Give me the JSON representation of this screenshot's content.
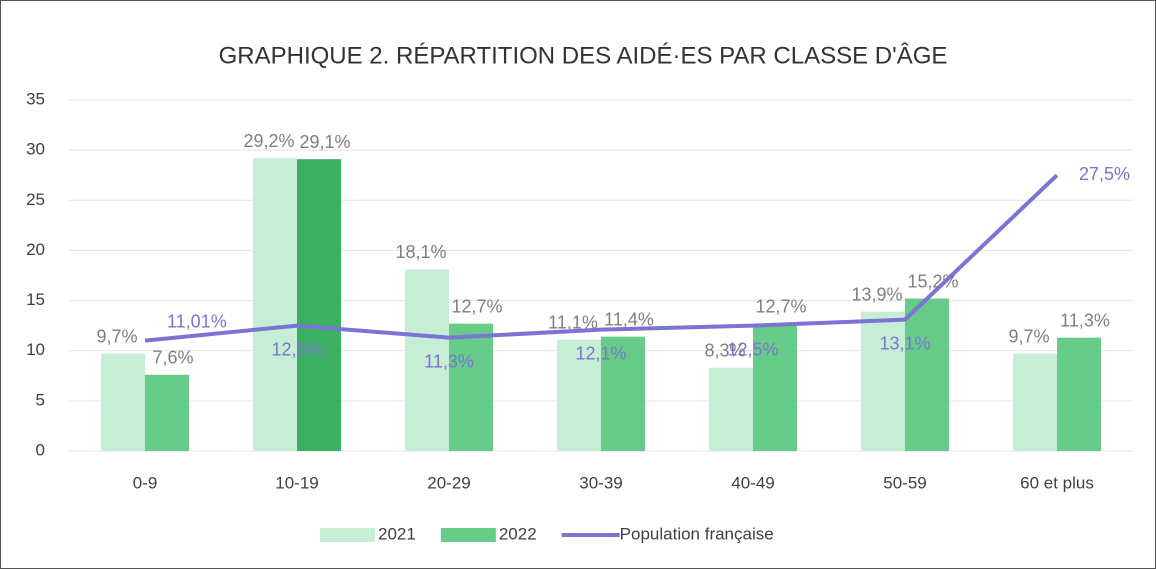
{
  "chart_data": {
    "type": "bar",
    "title": "GRAPHIQUE 2. RÉPARTITION DES AIDÉ·ES PAR CLASSE D'ÂGE",
    "categories": [
      "0-9",
      "10-19",
      "20-29",
      "30-39",
      "40-49",
      "50-59",
      "60 et plus"
    ],
    "series": [
      {
        "name": "2021",
        "type": "bar",
        "color": "#c5eed5",
        "values": [
          9.7,
          29.2,
          18.1,
          11.1,
          8.3,
          13.9,
          9.7
        ],
        "value_labels": [
          "9,7%",
          "29,2%",
          "18,1%",
          "11,1%",
          "8,3%",
          "13,9%",
          "9,7%"
        ]
      },
      {
        "name": "2022",
        "type": "bar",
        "color": "#66cc88",
        "colors": [
          "#66cc88",
          "#3daf63",
          "#66cc88",
          "#66cc88",
          "#66cc88",
          "#66cc88",
          "#66cc88"
        ],
        "values": [
          7.6,
          29.1,
          12.7,
          11.4,
          12.7,
          15.2,
          11.3
        ],
        "value_labels": [
          "7,6%",
          "29,1%",
          "12,7%",
          "11,4%",
          "12,7%",
          "15,2%",
          "11,3%"
        ]
      },
      {
        "name": "Population française",
        "type": "line",
        "color": "#7b74d4",
        "values": [
          11.01,
          12.5,
          11.3,
          12.1,
          12.5,
          13.1,
          27.5
        ],
        "value_labels": [
          "11,01%",
          "12,5%",
          "11,3%",
          "12,1%",
          "12,5%",
          "13,1%",
          "27,5%"
        ]
      }
    ],
    "ylim": [
      0,
      35
    ],
    "yticks": [
      0,
      5,
      10,
      15,
      20,
      25,
      30,
      35
    ],
    "grid": true,
    "legend": "bottom"
  }
}
